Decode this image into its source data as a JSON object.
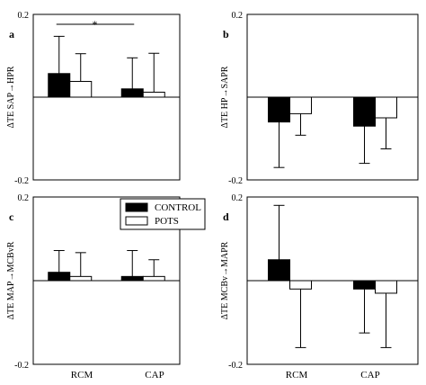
{
  "figure": {
    "x_categories": [
      "RCM",
      "CAP"
    ],
    "legend": [
      {
        "label": "CONTROL",
        "fill": "#000000"
      },
      {
        "label": "POTS",
        "fill": "#ffffff"
      }
    ]
  },
  "chart_data": [
    {
      "type": "bar",
      "panel_label": "a",
      "ylabel": "ΔTE SAP→HPR",
      "ylim": [
        -0.2,
        0.2
      ],
      "yticks": [
        "0.2",
        "-0.2"
      ],
      "categories": [
        "RCM",
        "CAP"
      ],
      "series": [
        {
          "name": "CONTROL",
          "values": [
            0.057,
            0.02
          ],
          "errors": [
            0.09,
            0.075
          ]
        },
        {
          "name": "POTS",
          "values": [
            0.038,
            0.012
          ],
          "errors": [
            0.067,
            0.094
          ]
        }
      ],
      "annotation": "*"
    },
    {
      "type": "bar",
      "panel_label": "b",
      "ylabel": "ΔTE HP→SAPR",
      "ylim": [
        -0.2,
        0.2
      ],
      "yticks": [
        "0.2",
        "-0.2"
      ],
      "categories": [
        "RCM",
        "CAP"
      ],
      "series": [
        {
          "name": "CONTROL",
          "values": [
            -0.06,
            -0.07
          ],
          "errors": [
            0.11,
            0.09
          ]
        },
        {
          "name": "POTS",
          "values": [
            -0.04,
            -0.05
          ],
          "errors": [
            0.052,
            0.075
          ]
        }
      ]
    },
    {
      "type": "bar",
      "panel_label": "c",
      "ylabel": "ΔTE MAP→MCBvR",
      "ylim": [
        -0.2,
        0.2
      ],
      "yticks": [
        "0.2",
        "-0.2"
      ],
      "categories": [
        "RCM",
        "CAP"
      ],
      "series": [
        {
          "name": "CONTROL",
          "values": [
            0.02,
            0.01
          ],
          "errors": [
            0.052,
            0.062
          ]
        },
        {
          "name": "POTS",
          "values": [
            0.01,
            0.01
          ],
          "errors": [
            0.057,
            0.04
          ]
        }
      ]
    },
    {
      "type": "bar",
      "panel_label": "d",
      "ylabel": "ΔTE MCBv→MAPR",
      "ylim": [
        -0.2,
        0.2
      ],
      "yticks": [
        "0.2",
        "-0.2"
      ],
      "categories": [
        "RCM",
        "CAP"
      ],
      "series": [
        {
          "name": "CONTROL",
          "values": [
            0.05,
            -0.02
          ],
          "errors": [
            0.13,
            0.105
          ]
        },
        {
          "name": "POTS",
          "values": [
            -0.02,
            -0.03
          ],
          "errors": [
            0.14,
            0.13
          ]
        }
      ]
    }
  ]
}
